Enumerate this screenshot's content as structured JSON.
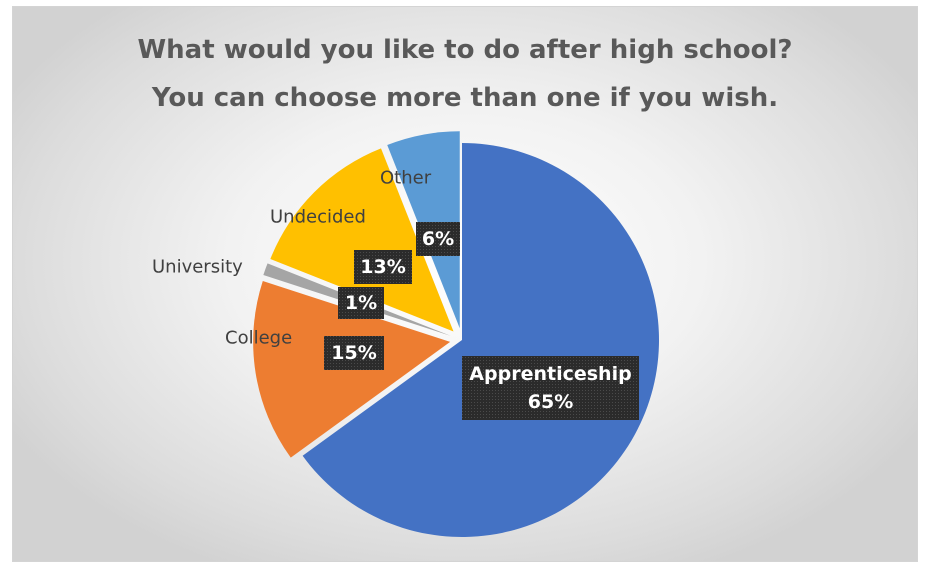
{
  "chart_data": {
    "type": "pie",
    "title": [
      "What would you like to do after high school?",
      "You can choose more than one if you wish."
    ],
    "slices": [
      {
        "label": "Apprenticeship",
        "value": 65,
        "display": "65%",
        "color": "#4472C4",
        "exploded": false
      },
      {
        "label": "College",
        "value": 15,
        "display": "15%",
        "color": "#ED7D31",
        "exploded": true
      },
      {
        "label": "University",
        "value": 1,
        "display": "1%",
        "color": "#A5A5A5",
        "exploded": true
      },
      {
        "label": "Undecided",
        "value": 13,
        "display": "13%",
        "color": "#FFC000",
        "exploded": true
      },
      {
        "label": "Other",
        "value": 6,
        "display": "6%",
        "color": "#5B9BD5",
        "exploded": true
      }
    ],
    "legend": "none",
    "data_labels": "category name and percentage"
  }
}
